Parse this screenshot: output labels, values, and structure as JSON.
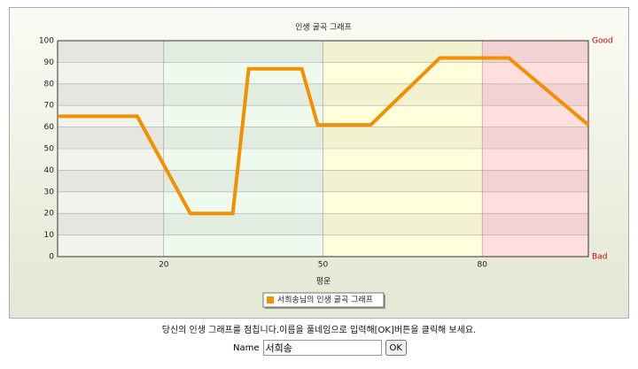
{
  "chart_data": {
    "type": "line",
    "title": "인생 굴곡 그래프",
    "x_label": "평운",
    "x": [
      0,
      15,
      25,
      33,
      36,
      46,
      49,
      59,
      72,
      85,
      100
    ],
    "series": [
      {
        "name": "서희송님의 인생 굴곡 그래프",
        "color": "#f39000",
        "values": [
          65,
          65,
          20,
          20,
          87,
          87,
          61,
          61,
          92,
          92,
          61
        ]
      }
    ],
    "xlim": [
      0,
      100
    ],
    "xticks": [
      20,
      50,
      80
    ],
    "ylim": [
      0,
      100
    ],
    "yticks": [
      0,
      10,
      20,
      30,
      40,
      50,
      60,
      70,
      80,
      90,
      100
    ],
    "y2lim": [
      0,
      100
    ],
    "y2ticks": [
      {
        "value": 0,
        "label": "Bad"
      },
      {
        "value": 100,
        "label": "Good"
      }
    ],
    "band_colors": [
      "#f3f3ee",
      "#effaef",
      "#ffffdc",
      "#ffdede"
    ],
    "grid": true,
    "legend": "bottom"
  },
  "instructions": "당신의 인생 그래프를 점칩니다.이름을 풀네임으로 입력해[OK]버튼을 클릭해 보세요.",
  "form": {
    "label": "Name",
    "value": "서희송",
    "button": "OK"
  }
}
